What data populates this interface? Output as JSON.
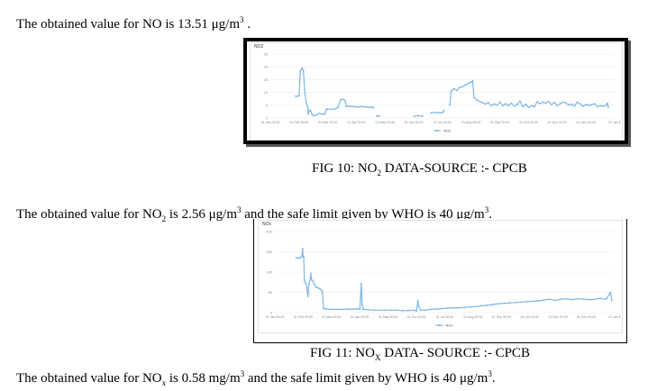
{
  "paragraphs": {
    "p1": {
      "prefix": "The obtained value for NO is 13.51 μg/m",
      "sup": "3",
      "suffix": " ."
    },
    "p2": {
      "prefix": "The obtained value for NO",
      "sub": "2",
      "middle": " is 2.56 μg/m",
      "sup1": "3",
      "middle2": " and the safe limit given by WHO is 40 μg/m",
      "sup2": "3",
      "suffix": "."
    },
    "p3": {
      "prefix": "The obtained value for NO",
      "sub": "x",
      "middle": " is 0.58 mg/m",
      "sup1": "3",
      "middle2": " and the safe limit given by WHO is 40 μg/m",
      "sup2": "3",
      "suffix": "."
    }
  },
  "captions": {
    "fig10": {
      "prefix": "FIG 10: NO",
      "sub": "2",
      "suffix": " DATA-SOURCE :- CPCB"
    },
    "fig11": {
      "prefix": "FIG 11: NO",
      "sub": "X",
      "suffix": " DATA- SOURCE :- CPCB"
    }
  },
  "chart_data": [
    {
      "type": "line",
      "title": "NO2",
      "legend": "NO2",
      "legend_position": "bottom",
      "grid": true,
      "ylim": [
        0,
        25
      ],
      "yticks": [
        0,
        5,
        10,
        15,
        20,
        25
      ],
      "xticks": [
        "01 Jan 00:00",
        "01 Feb 00:00",
        "01 Mar 00:00",
        "01 Apr 00:00",
        "01 May 00:00",
        "01 Jun 00:00",
        "01 Jul 00:00",
        "01 Aug 00:00",
        "01 Sep 00:00",
        "01 Oct 00:00",
        "01 Nov 00:00",
        "01 Dec 00:00",
        "01 Jan 0"
      ],
      "color": "#7eb6e6",
      "segments": [
        [
          [
            0.88,
            8.5
          ],
          [
            0.95,
            8.5
          ],
          [
            1.0,
            8.7
          ],
          [
            1.05,
            18.5
          ],
          [
            1.1,
            19.5
          ],
          [
            1.15,
            18.8
          ],
          [
            1.2,
            10
          ],
          [
            1.25,
            6
          ],
          [
            1.3,
            4.5
          ],
          [
            1.32,
            1.5
          ],
          [
            1.35,
            3
          ],
          [
            1.4,
            2.8
          ],
          [
            1.45,
            1.6
          ],
          [
            1.5,
            0.8
          ],
          [
            1.6,
            1.2
          ],
          [
            1.7,
            1.8
          ],
          [
            1.8,
            1.5
          ],
          [
            1.9,
            1.6
          ],
          [
            1.95,
            3.5
          ],
          [
            2.0,
            3.4
          ],
          [
            2.2,
            3.4
          ],
          [
            2.35,
            4
          ],
          [
            2.45,
            7.2
          ],
          [
            2.55,
            7.3
          ],
          [
            2.6,
            6.8
          ],
          [
            2.65,
            4.5
          ],
          [
            2.75,
            4.6
          ],
          [
            2.85,
            4.5
          ],
          [
            2.95,
            4.4
          ],
          [
            3.05,
            4.3
          ],
          [
            3.15,
            4.5
          ],
          [
            3.25,
            4.4
          ],
          [
            3.35,
            4.3
          ],
          [
            3.45,
            4.2
          ],
          [
            3.55,
            4.3
          ],
          [
            3.6,
            3.9
          ]
        ],
        [
          [
            3.7,
            0.8
          ],
          [
            3.75,
            0.6
          ],
          [
            3.8,
            0.9
          ]
        ],
        [
          [
            5.0,
            0.6
          ],
          [
            5.15,
            0.9
          ],
          [
            5.3,
            0.7
          ]
        ],
        [
          [
            5.6,
            2.0
          ],
          [
            5.75,
            2.2
          ],
          [
            5.9,
            2.1
          ],
          [
            6.0,
            2.1
          ],
          [
            6.05,
            3.0
          ]
        ],
        [
          [
            6.25,
            5.0
          ],
          [
            6.3,
            10.5
          ],
          [
            6.4,
            11.5
          ],
          [
            6.5,
            10.8
          ],
          [
            6.6,
            12
          ],
          [
            6.7,
            12.2
          ],
          [
            6.8,
            13
          ],
          [
            6.9,
            13.5
          ],
          [
            7.0,
            14
          ],
          [
            7.05,
            14.5
          ],
          [
            7.1,
            8
          ],
          [
            7.2,
            7
          ],
          [
            7.35,
            6.2
          ],
          [
            7.5,
            5.5
          ],
          [
            7.6,
            6
          ],
          [
            7.7,
            4.8
          ],
          [
            7.8,
            5.5
          ],
          [
            7.9,
            5
          ],
          [
            8.0,
            6.2
          ],
          [
            8.1,
            4.8
          ],
          [
            8.2,
            5.6
          ],
          [
            8.3,
            4.9
          ],
          [
            8.4,
            5.8
          ],
          [
            8.5,
            4.6
          ],
          [
            8.6,
            5.3
          ],
          [
            8.7,
            6.6
          ],
          [
            8.8,
            4.4
          ],
          [
            8.9,
            5.4
          ],
          [
            9.0,
            4.2
          ],
          [
            9.1,
            4.8
          ],
          [
            9.2,
            4.4
          ],
          [
            9.3,
            6.4
          ],
          [
            9.4,
            5.6
          ],
          [
            9.5,
            6.2
          ],
          [
            9.6,
            5.8
          ],
          [
            9.7,
            6.4
          ],
          [
            9.8,
            5.2
          ],
          [
            9.9,
            6.1
          ],
          [
            10.0,
            4.8
          ],
          [
            10.1,
            5.6
          ],
          [
            10.2,
            6.2
          ],
          [
            10.3,
            5.9
          ],
          [
            10.4,
            5.1
          ],
          [
            10.5,
            5.4
          ],
          [
            10.6,
            4.7
          ],
          [
            10.7,
            6.2
          ],
          [
            10.8,
            5.5
          ],
          [
            10.9,
            4.6
          ],
          [
            11.0,
            5.3
          ],
          [
            11.1,
            4.9
          ],
          [
            11.2,
            5.2
          ],
          [
            11.3,
            5.6
          ],
          [
            11.4,
            4.5
          ],
          [
            11.5,
            4.8
          ],
          [
            11.6,
            4.6
          ],
          [
            11.7,
            5.0
          ],
          [
            11.75,
            5.8
          ],
          [
            11.78,
            4.2
          ]
        ]
      ]
    },
    {
      "type": "line",
      "title": "NOx",
      "legend": "NOx",
      "legend_position": "bottom",
      "grid": true,
      "ylim": [
        0,
        200
      ],
      "yticks": [
        0,
        50,
        100,
        150,
        200
      ],
      "xticks": [
        "01 Jan 00:00",
        "01 Feb 00:00",
        "01 Mar 00:00",
        "01 Apr 00:00",
        "01 May 00:00",
        "01 Jun 00:00",
        "01 Jul 00:00",
        "01 Aug 00:00",
        "01 Sep 00:00",
        "01 Oct 00:00",
        "01 Nov 00:00",
        "01 Dec 00:00",
        "01 Jan 0"
      ],
      "color": "#7eb6e6",
      "segments": [
        [
          [
            0.75,
            135
          ],
          [
            0.8,
            135
          ],
          [
            0.85,
            134
          ],
          [
            0.9,
            136
          ],
          [
            0.95,
            137
          ],
          [
            0.98,
            158
          ],
          [
            1.0,
            138
          ],
          [
            1.02,
            137
          ],
          [
            1.04,
            80
          ],
          [
            1.06,
            75
          ],
          [
            1.1,
            72
          ],
          [
            1.13,
            62
          ],
          [
            1.15,
            48
          ],
          [
            1.17,
            40
          ],
          [
            1.2,
            70
          ],
          [
            1.25,
            85
          ],
          [
            1.27,
            97
          ],
          [
            1.3,
            80
          ],
          [
            1.35,
            78
          ],
          [
            1.4,
            68
          ],
          [
            1.45,
            63
          ],
          [
            1.5,
            62
          ],
          [
            1.55,
            60
          ],
          [
            1.6,
            58
          ],
          [
            1.65,
            55
          ],
          [
            1.68,
            50
          ],
          [
            1.72,
            10
          ],
          [
            1.8,
            9
          ],
          [
            2.0,
            8
          ],
          [
            2.2,
            8
          ],
          [
            2.4,
            8
          ],
          [
            2.6,
            9
          ],
          [
            2.7,
            8
          ],
          [
            2.8,
            9
          ],
          [
            2.9,
            9
          ],
          [
            3.0,
            9
          ],
          [
            3.05,
            72
          ],
          [
            3.08,
            20
          ],
          [
            3.12,
            8
          ],
          [
            3.3,
            7
          ],
          [
            3.5,
            6
          ],
          [
            3.7,
            6
          ],
          [
            3.9,
            6
          ],
          [
            4.1,
            6
          ],
          [
            4.3,
            6
          ],
          [
            4.5,
            5
          ],
          [
            4.7,
            5
          ],
          [
            4.9,
            6
          ],
          [
            5.0,
            4
          ],
          [
            5.05,
            30
          ],
          [
            5.08,
            15
          ],
          [
            5.15,
            6
          ],
          [
            5.3,
            6
          ],
          [
            5.5,
            8
          ],
          [
            5.7,
            9
          ],
          [
            5.9,
            10
          ],
          [
            6.1,
            11
          ],
          [
            6.3,
            12
          ],
          [
            6.5,
            12
          ],
          [
            6.7,
            13
          ],
          [
            6.9,
            14
          ],
          [
            7.1,
            15
          ],
          [
            7.3,
            17
          ],
          [
            7.5,
            18
          ],
          [
            7.7,
            20
          ],
          [
            7.9,
            22
          ],
          [
            8.1,
            23
          ],
          [
            8.3,
            24
          ],
          [
            8.5,
            25
          ],
          [
            8.7,
            26
          ],
          [
            8.9,
            27
          ],
          [
            9.1,
            28
          ],
          [
            9.3,
            29
          ],
          [
            9.5,
            31
          ],
          [
            9.7,
            33
          ],
          [
            9.9,
            30
          ],
          [
            10.1,
            33
          ],
          [
            10.3,
            34
          ],
          [
            10.5,
            32
          ],
          [
            10.7,
            34
          ],
          [
            10.9,
            33
          ],
          [
            11.1,
            32
          ],
          [
            11.3,
            33
          ],
          [
            11.5,
            35
          ],
          [
            11.7,
            33
          ],
          [
            11.85,
            50
          ],
          [
            11.9,
            30
          ]
        ]
      ]
    }
  ]
}
